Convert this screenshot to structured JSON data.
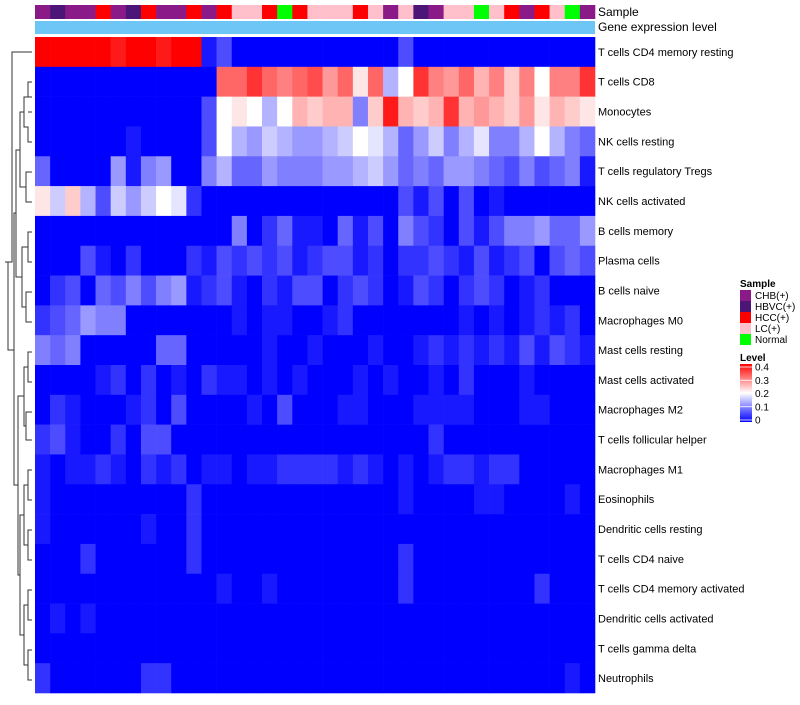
{
  "chart_data": {
    "type": "heatmap",
    "annotation_labels": {
      "sample": "Sample",
      "gene": "Gene expression level"
    },
    "rows": [
      "T cells CD4 memory resting",
      "T cells CD8",
      "Monocytes",
      "NK cells resting",
      "T cells regulatory  Tregs",
      "NK cells activated",
      "B cells memory",
      "Plasma cells",
      "B cells naive",
      "Macrophages M0",
      "Mast cells resting",
      "Mast cells activated",
      "Macrophages M2",
      "T cells follicular helper",
      "Macrophages M1",
      "Eosinophils",
      "Dendritic cells resting",
      "T cells CD4 naive",
      "T cells CD4 memory activated",
      "Dendritic cells activated",
      "T cells gamma delta",
      "Neutrophils"
    ],
    "column_samples": [
      "CHB(+)",
      "HBVC(+)",
      "CHB(+)",
      "CHB(+)",
      "HCC(+)",
      "CHB(+)",
      "HBVC(+)",
      "HCC(+)",
      "CHB(+)",
      "CHB(+)",
      "HCC(+)",
      "CHB(+)",
      "HCC(+)",
      "LC(+)",
      "LC(+)",
      "HCC(+)",
      "Normal",
      "HCC(+)",
      "LC(+)",
      "LC(+)",
      "LC(+)",
      "HCC(+)",
      "LC(+)",
      "CHB(+)",
      "LC(+)",
      "HBVC(+)",
      "CHB(+)",
      "LC(+)",
      "LC(+)",
      "Normal",
      "LC(+)",
      "HCC(+)",
      "CHB(+)",
      "HCC(+)",
      "LC(+)",
      "Normal",
      "CHB(+)"
    ],
    "values": [
      [
        0.4,
        0.4,
        0.4,
        0.4,
        0.4,
        0.38,
        0.4,
        0.4,
        0.38,
        0.4,
        0.4,
        0.02,
        0.06,
        0,
        0,
        0,
        0,
        0,
        0,
        0,
        0,
        0,
        0,
        0,
        0.06,
        0,
        0,
        0,
        0,
        0,
        0,
        0,
        0,
        0,
        0,
        0,
        0
      ],
      [
        0,
        0,
        0,
        0,
        0,
        0,
        0,
        0,
        0,
        0,
        0,
        0,
        0.32,
        0.32,
        0.36,
        0.32,
        0.3,
        0.32,
        0.34,
        0.28,
        0.32,
        0.22,
        0.32,
        0.14,
        0.2,
        0.36,
        0.3,
        0.28,
        0.32,
        0.26,
        0.3,
        0.24,
        0.3,
        0.2,
        0.3,
        0.3,
        0.36
      ],
      [
        0,
        0,
        0,
        0,
        0,
        0,
        0,
        0,
        0,
        0,
        0,
        0.06,
        0.2,
        0.22,
        0.2,
        0.14,
        0.2,
        0.26,
        0.24,
        0.26,
        0.26,
        0.1,
        0.24,
        0.38,
        0.26,
        0.24,
        0.26,
        0.36,
        0.26,
        0.28,
        0.26,
        0.24,
        0.28,
        0.22,
        0.26,
        0.24,
        0.22
      ],
      [
        0,
        0,
        0,
        0,
        0,
        0,
        0.02,
        0,
        0,
        0,
        0,
        0.06,
        0.2,
        0.14,
        0.12,
        0.16,
        0.14,
        0.12,
        0.12,
        0.14,
        0.16,
        0.2,
        0.18,
        0.14,
        0.08,
        0.12,
        0.16,
        0.1,
        0.14,
        0.18,
        0.1,
        0.1,
        0.14,
        0.2,
        0.14,
        0.1,
        0.08
      ],
      [
        0.08,
        0,
        0,
        0,
        0,
        0.12,
        0.02,
        0.1,
        0.12,
        0,
        0,
        0.1,
        0.14,
        0.08,
        0.08,
        0.12,
        0.1,
        0.1,
        0.1,
        0.12,
        0.12,
        0.14,
        0.16,
        0.12,
        0.08,
        0.1,
        0.08,
        0.12,
        0.12,
        0.1,
        0.08,
        0.06,
        0.1,
        0.06,
        0.08,
        0.1,
        0.02
      ],
      [
        0.22,
        0.16,
        0.24,
        0.14,
        0.06,
        0.16,
        0.12,
        0.16,
        0.2,
        0.18,
        0.04,
        0,
        0,
        0,
        0,
        0,
        0,
        0,
        0,
        0,
        0,
        0,
        0,
        0,
        0.06,
        0.02,
        0.06,
        0,
        0.06,
        0,
        0.02,
        0,
        0,
        0,
        0,
        0,
        0
      ],
      [
        0,
        0,
        0,
        0,
        0,
        0,
        0,
        0,
        0,
        0,
        0,
        0,
        0,
        0.1,
        0,
        0.04,
        0.08,
        0.02,
        0.02,
        0,
        0.08,
        0.02,
        0.06,
        0,
        0.1,
        0.06,
        0.04,
        0,
        0.06,
        0.02,
        0.06,
        0.1,
        0.1,
        0.12,
        0.08,
        0.08,
        0.12
      ],
      [
        0,
        0,
        0,
        0.06,
        0.02,
        0,
        0.04,
        0,
        0,
        0,
        0.04,
        0.02,
        0.06,
        0.04,
        0.06,
        0.04,
        0.06,
        0.02,
        0.04,
        0.06,
        0.06,
        0.02,
        0.04,
        0,
        0.04,
        0.04,
        0.06,
        0.04,
        0.02,
        0.06,
        0.02,
        0.04,
        0.06,
        0,
        0.06,
        0.08,
        0.06
      ],
      [
        0,
        0.04,
        0.06,
        0,
        0.08,
        0.06,
        0.1,
        0.06,
        0.1,
        0.12,
        0.02,
        0.04,
        0.06,
        0.02,
        0,
        0.04,
        0.02,
        0.06,
        0.06,
        0,
        0.04,
        0.06,
        0.04,
        0,
        0.02,
        0.06,
        0.04,
        0,
        0.04,
        0.06,
        0.04,
        0,
        0.02,
        0.04,
        0,
        0,
        0
      ],
      [
        0.04,
        0.06,
        0.08,
        0.12,
        0.1,
        0.1,
        0,
        0,
        0,
        0,
        0,
        0,
        0,
        0.02,
        0,
        0.02,
        0.02,
        0,
        0,
        0.02,
        0.04,
        0,
        0,
        0,
        0,
        0,
        0,
        0,
        0.02,
        0,
        0.02,
        0,
        0.02,
        0.04,
        0.02,
        0.04,
        0
      ],
      [
        0.1,
        0.08,
        0.1,
        0,
        0,
        0,
        0,
        0,
        0.08,
        0.08,
        0,
        0,
        0,
        0,
        0,
        0.02,
        0,
        0,
        0.02,
        0,
        0,
        0,
        0.02,
        0,
        0,
        0.02,
        0.04,
        0.02,
        0.04,
        0.02,
        0.04,
        0.02,
        0.06,
        0.02,
        0.06,
        0.04,
        0.02
      ],
      [
        0,
        0,
        0,
        0,
        0.02,
        0.04,
        0,
        0.04,
        0,
        0.02,
        0,
        0.04,
        0.02,
        0.02,
        0,
        0.02,
        0,
        0.02,
        0,
        0,
        0,
        0.02,
        0,
        0.02,
        0,
        0,
        0.02,
        0,
        0.04,
        0,
        0,
        0,
        0.02,
        0,
        0,
        0,
        0
      ],
      [
        0,
        0.04,
        0.02,
        0,
        0,
        0,
        0.02,
        0.04,
        0,
        0.06,
        0,
        0,
        0,
        0,
        0.02,
        0,
        0.06,
        0,
        0,
        0,
        0.02,
        0.02,
        0,
        0,
        0,
        0.02,
        0.02,
        0.02,
        0.02,
        0,
        0,
        0,
        0.02,
        0.02,
        0,
        0,
        0
      ],
      [
        0.04,
        0.06,
        0.02,
        0,
        0,
        0.04,
        0,
        0.06,
        0.06,
        0,
        0,
        0,
        0,
        0,
        0,
        0,
        0,
        0,
        0,
        0,
        0,
        0,
        0,
        0,
        0,
        0,
        0.04,
        0,
        0,
        0,
        0,
        0,
        0,
        0,
        0,
        0,
        0
      ],
      [
        0.02,
        0,
        0.02,
        0.02,
        0.04,
        0.02,
        0,
        0.04,
        0.02,
        0.04,
        0,
        0.02,
        0.02,
        0,
        0.02,
        0.02,
        0.04,
        0.04,
        0.04,
        0.04,
        0.02,
        0.04,
        0.02,
        0,
        0.02,
        0,
        0.02,
        0.04,
        0.04,
        0.02,
        0.04,
        0.04,
        0,
        0,
        0,
        0,
        0
      ],
      [
        0.02,
        0,
        0,
        0,
        0,
        0,
        0,
        0,
        0,
        0,
        0.04,
        0,
        0,
        0,
        0,
        0,
        0,
        0,
        0,
        0,
        0,
        0,
        0,
        0,
        0.02,
        0,
        0,
        0,
        0,
        0.02,
        0.02,
        0,
        0,
        0,
        0,
        0.02,
        0
      ],
      [
        0.02,
        0,
        0,
        0,
        0,
        0,
        0,
        0.02,
        0,
        0,
        0.04,
        0,
        0,
        0,
        0,
        0,
        0,
        0,
        0,
        0,
        0,
        0,
        0,
        0,
        0,
        0,
        0,
        0,
        0,
        0,
        0,
        0,
        0,
        0,
        0,
        0,
        0
      ],
      [
        0,
        0,
        0,
        0.04,
        0,
        0,
        0,
        0,
        0,
        0,
        0.04,
        0,
        0,
        0,
        0,
        0,
        0,
        0,
        0,
        0,
        0,
        0,
        0,
        0,
        0.04,
        0,
        0,
        0,
        0,
        0,
        0,
        0,
        0,
        0,
        0,
        0,
        0
      ],
      [
        0,
        0,
        0,
        0,
        0,
        0,
        0,
        0,
        0,
        0,
        0,
        0,
        0.02,
        0,
        0,
        0.02,
        0,
        0,
        0,
        0,
        0,
        0,
        0,
        0,
        0.04,
        0,
        0,
        0,
        0,
        0,
        0,
        0,
        0,
        0.04,
        0,
        0,
        0
      ],
      [
        0,
        0.02,
        0,
        0.02,
        0,
        0,
        0,
        0,
        0,
        0,
        0,
        0,
        0,
        0,
        0,
        0,
        0,
        0,
        0,
        0,
        0,
        0,
        0,
        0,
        0,
        0,
        0,
        0,
        0,
        0,
        0,
        0,
        0,
        0,
        0,
        0,
        0
      ],
      [
        0,
        0,
        0,
        0,
        0,
        0,
        0,
        0,
        0,
        0,
        0,
        0,
        0,
        0,
        0,
        0,
        0,
        0,
        0,
        0,
        0,
        0,
        0,
        0,
        0,
        0,
        0,
        0,
        0,
        0,
        0,
        0,
        0,
        0,
        0,
        0,
        0
      ],
      [
        0.04,
        0,
        0,
        0,
        0,
        0,
        0,
        0.04,
        0.04,
        0,
        0,
        0,
        0,
        0,
        0,
        0,
        0,
        0,
        0,
        0,
        0,
        0,
        0,
        0,
        0,
        0,
        0,
        0,
        0,
        0,
        0,
        0,
        0,
        0,
        0,
        0.02,
        0
      ]
    ],
    "legend": {
      "sample_title": "Sample",
      "sample_items": [
        {
          "label": "CHB(+)",
          "color": "#8B1A89"
        },
        {
          "label": "HBVC(+)",
          "color": "#4B1678"
        },
        {
          "label": "HCC(+)",
          "color": "#FF0000"
        },
        {
          "label": "LC(+)",
          "color": "#FFC0CB"
        },
        {
          "label": "Normal",
          "color": "#00FF00"
        }
      ],
      "level_title": "Level",
      "level_ticks": [
        "0.4",
        "0.3",
        "0.2",
        "0.1",
        "0"
      ],
      "level_tick_values": [
        0.4,
        0.3,
        0.2,
        0.1,
        0
      ]
    },
    "colors": {
      "low": "#0000FF",
      "mid": "#FFFFFF",
      "high": "#FF0000",
      "gene_bar": "#6EC6F7"
    },
    "range": [
      0,
      0.4
    ]
  }
}
